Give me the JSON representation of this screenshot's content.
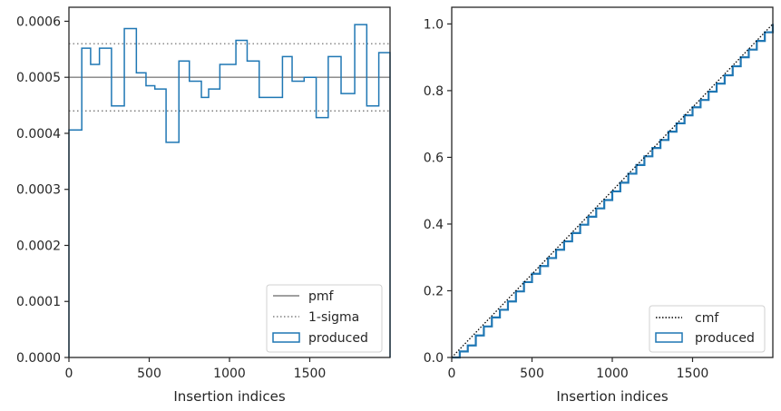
{
  "chart_data": [
    {
      "type": "histogram-step",
      "xlabel": "Insertion indices",
      "ylabel": "",
      "xlim": [
        0,
        2000
      ],
      "ylim": [
        0,
        0.000625
      ],
      "x_ticks": [
        0,
        500,
        1000,
        1500
      ],
      "y_ticks": [
        0,
        0.0001,
        0.0002,
        0.0003,
        0.0004,
        0.0005,
        0.0006
      ],
      "x_tick_labels": [
        "0",
        "500",
        "1000",
        "1500"
      ],
      "y_tick_labels": [
        "0.0000",
        "0.0001",
        "0.0002",
        "0.0003",
        "0.0004",
        "0.0005",
        "0.0006"
      ],
      "bin_edges": [
        0,
        80,
        135,
        190,
        265,
        345,
        420,
        480,
        535,
        605,
        685,
        750,
        825,
        870,
        940,
        1040,
        1110,
        1185,
        1330,
        1390,
        1465,
        1540,
        1615,
        1695,
        1780,
        1855,
        1930,
        2000
      ],
      "series": [
        {
          "name": "produced",
          "color": "#1f77b4",
          "values": [
            0.000406,
            0.000552,
            0.000523,
            0.000552,
            0.000449,
            0.000587,
            0.000508,
            0.000485,
            0.000479,
            0.000384,
            0.000529,
            0.000493,
            0.000464,
            0.000479,
            0.000523,
            0.000566,
            0.000529,
            0.000464,
            0.000537,
            0.000493,
            0.0005,
            0.000428,
            0.000537,
            0.000471,
            0.000594,
            0.000449,
            0.000544
          ]
        }
      ],
      "reference_lines": [
        {
          "name": "pmf",
          "y": 0.0005,
          "color": "#808080",
          "style": "solid"
        },
        {
          "name": "1-sigma",
          "y": 0.00056,
          "color": "#808080",
          "style": "dotted"
        },
        {
          "name": "",
          "y": 0.00044,
          "color": "#808080",
          "style": "dotted"
        }
      ],
      "legend": {
        "placement": "lower-right",
        "entries": [
          "pmf",
          "1-sigma",
          "produced"
        ]
      }
    },
    {
      "type": "line",
      "xlabel": "Insertion indices",
      "ylabel": "",
      "xlim": [
        0,
        2000
      ],
      "ylim": [
        0,
        1.05
      ],
      "x_ticks": [
        0,
        500,
        1000,
        1500
      ],
      "y_ticks": [
        0,
        0.2,
        0.4,
        0.6,
        0.8,
        1.0
      ],
      "x_tick_labels": [
        "0",
        "500",
        "1000",
        "1500"
      ],
      "y_tick_labels": [
        "0.0",
        "0.2",
        "0.4",
        "0.6",
        "0.8",
        "1.0"
      ],
      "series": [
        {
          "name": "cmf",
          "color": "#000000",
          "style": "dotted",
          "x": [
            0,
            2000
          ],
          "y": [
            0,
            1.0
          ]
        },
        {
          "name": "produced",
          "color": "#1f77b4",
          "style": "step",
          "x": [
            0,
            50,
            100,
            150,
            200,
            250,
            300,
            350,
            400,
            450,
            500,
            550,
            600,
            650,
            700,
            750,
            800,
            850,
            900,
            950,
            1000,
            1050,
            1100,
            1150,
            1200,
            1250,
            1300,
            1350,
            1400,
            1450,
            1500,
            1550,
            1600,
            1650,
            1700,
            1750,
            1800,
            1850,
            1900,
            1950,
            2000
          ],
          "y": [
            0,
            0.018,
            0.036,
            0.066,
            0.093,
            0.12,
            0.143,
            0.168,
            0.198,
            0.226,
            0.251,
            0.274,
            0.298,
            0.323,
            0.348,
            0.373,
            0.398,
            0.422,
            0.447,
            0.472,
            0.498,
            0.524,
            0.551,
            0.577,
            0.603,
            0.628,
            0.652,
            0.677,
            0.702,
            0.726,
            0.75,
            0.772,
            0.797,
            0.821,
            0.846,
            0.873,
            0.9,
            0.923,
            0.949,
            0.975,
            1.0
          ]
        }
      ],
      "legend": {
        "placement": "lower-right",
        "entries": [
          "cmf",
          "produced"
        ]
      }
    }
  ]
}
